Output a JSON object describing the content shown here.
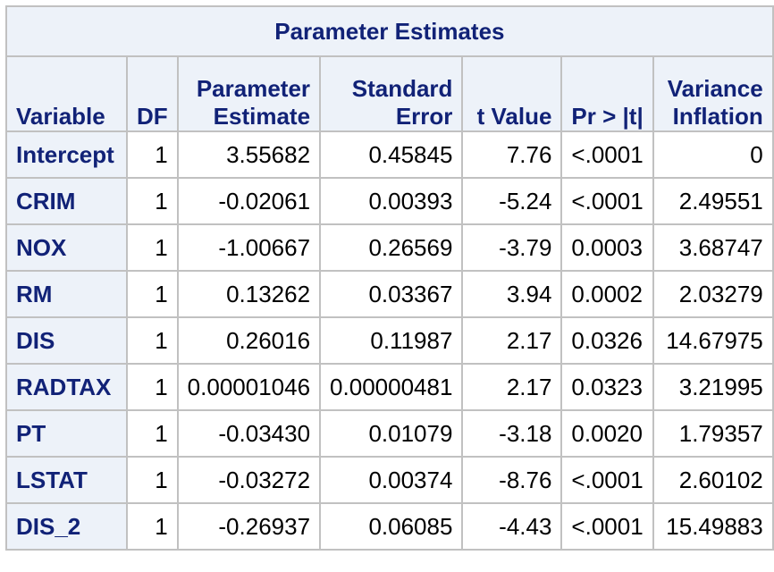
{
  "table": {
    "title": "Parameter Estimates",
    "headers": [
      {
        "lines": [
          "Variable"
        ],
        "align": "left"
      },
      {
        "lines": [
          "DF"
        ],
        "align": "left"
      },
      {
        "lines": [
          "Parameter",
          "Estimate"
        ],
        "align": "right"
      },
      {
        "lines": [
          "Standard",
          "Error"
        ],
        "align": "right"
      },
      {
        "lines": [
          "t Value"
        ],
        "align": "right"
      },
      {
        "lines": [
          "Pr > |t|"
        ],
        "align": "left"
      },
      {
        "lines": [
          "Variance",
          "Inflation"
        ],
        "align": "right"
      }
    ],
    "rows": [
      [
        "Intercept",
        "1",
        "3.55682",
        "0.45845",
        "7.76",
        "<.0001",
        "0"
      ],
      [
        "CRIM",
        "1",
        "-0.02061",
        "0.00393",
        "-5.24",
        "<.0001",
        "2.49551"
      ],
      [
        "NOX",
        "1",
        "-1.00667",
        "0.26569",
        "-3.79",
        "0.0003",
        "3.68747"
      ],
      [
        "RM",
        "1",
        "0.13262",
        "0.03367",
        "3.94",
        "0.0002",
        "2.03279"
      ],
      [
        "DIS",
        "1",
        "0.26016",
        "0.11987",
        "2.17",
        "0.0326",
        "14.67975"
      ],
      [
        "RADTAX",
        "1",
        "0.00001046",
        "0.00000481",
        "2.17",
        "0.0323",
        "3.21995"
      ],
      [
        "PT",
        "1",
        "-0.03430",
        "0.01079",
        "-3.18",
        "0.0020",
        "1.79357"
      ],
      [
        "LSTAT",
        "1",
        "-0.03272",
        "0.00374",
        "-8.76",
        "<.0001",
        "2.60102"
      ],
      [
        "DIS_2",
        "1",
        "-0.26937",
        "0.06085",
        "-4.43",
        "<.0001",
        "15.49883"
      ]
    ]
  },
  "colors": {
    "header_bg": "#edf2f9",
    "header_text": "#112277",
    "border": "#c1c1c1",
    "cell_bg": "#ffffff"
  }
}
